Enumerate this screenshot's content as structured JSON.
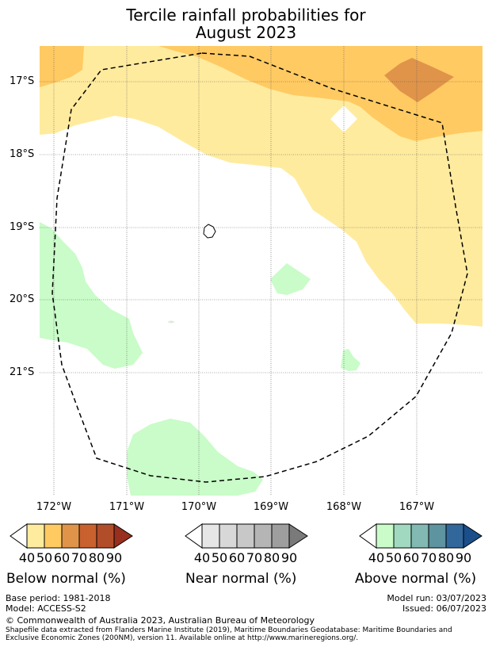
{
  "title": {
    "line1": "Tercile rainfall probabilities for",
    "line2": "August 2023"
  },
  "map": {
    "lat_labels": [
      "17°S",
      "18°S",
      "19°S",
      "20°S",
      "21°S"
    ],
    "lon_labels": [
      "172°W",
      "171°W",
      "170°W",
      "169°W",
      "168°W",
      "167°W"
    ],
    "colors": {
      "below_50": "#ffeb9e",
      "below_60": "#ffca62",
      "below_70": "#e0944a",
      "above_50": "#c9fcc8",
      "eez_line": "#000000"
    }
  },
  "legends": [
    {
      "name": "below",
      "title": "Below normal (%)",
      "ticks": [
        "40",
        "50",
        "60",
        "70",
        "80",
        "90"
      ],
      "colors": [
        "#ffffff",
        "#ffeb9e",
        "#ffca62",
        "#e0944a",
        "#c9612f",
        "#b24d29",
        "#982f1f"
      ]
    },
    {
      "name": "near",
      "title": "Near normal (%)",
      "ticks": [
        "40",
        "50",
        "60",
        "70",
        "80",
        "90"
      ],
      "colors": [
        "#ffffff",
        "#e6e6e6",
        "#d8d8d8",
        "#c8c8c8",
        "#b5b5b5",
        "#9e9e9e",
        "#7a7a7a"
      ]
    },
    {
      "name": "above",
      "title": "Above normal (%)",
      "ticks": [
        "40",
        "50",
        "60",
        "70",
        "80",
        "90"
      ],
      "colors": [
        "#ffffff",
        "#c9fcc8",
        "#a1d8c0",
        "#82b9b3",
        "#5e93a0",
        "#31679b",
        "#1a4f8a"
      ]
    }
  ],
  "footer": {
    "base_period": "Base period: 1981-2018",
    "model": "Model: ACCESS-S2",
    "model_run": "Model run: 03/07/2023",
    "issued": "Issued: 06/07/2023",
    "copyright": "© Commonwealth of Australia 2023, Australian Bureau of Meteorology",
    "shapefile_line1": "Shapefile data extracted from Flanders Marine Institute (2019), Maritime Boundaries Geodatabase: Maritime Boundaries and",
    "shapefile_line2": "Exclusive Economic Zones (200NM), version 11. Available online at http://www.marineregions.org/."
  }
}
